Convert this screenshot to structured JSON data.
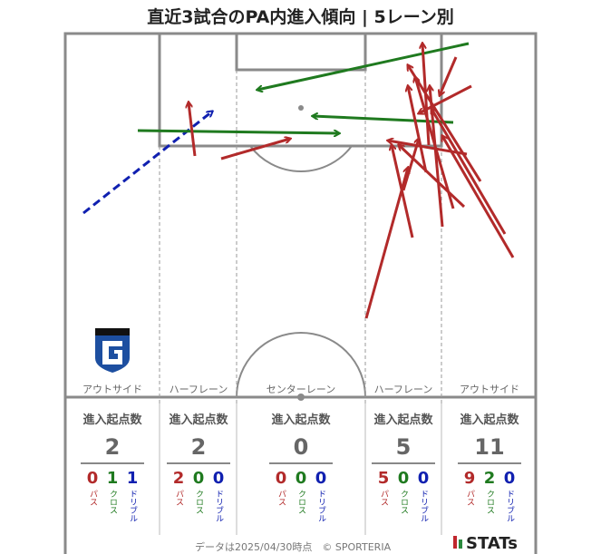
{
  "title": "直近3試合のPA内進入傾向 | 5レーン別",
  "colors": {
    "pass": "#b22a2a",
    "cross": "#1f7a1f",
    "dribble": "#1020b0",
    "line": "#8a8a8a"
  },
  "lanes": [
    {
      "label": "アウトサイド",
      "stat_head": "進入起点数",
      "total": "2",
      "pass": "0",
      "cross": "1",
      "dribble": "1"
    },
    {
      "label": "ハーフレーン",
      "stat_head": "進入起点数",
      "total": "2",
      "pass": "2",
      "cross": "0",
      "dribble": "0"
    },
    {
      "label": "センターレーン",
      "stat_head": "進入起点数",
      "total": "0",
      "pass": "0",
      "cross": "0",
      "dribble": "0"
    },
    {
      "label": "ハーフレーン",
      "stat_head": "進入起点数",
      "total": "5",
      "pass": "5",
      "cross": "0",
      "dribble": "0"
    },
    {
      "label": "アウトサイド",
      "stat_head": "進入起点数",
      "total": "11",
      "pass": "9",
      "cross": "2",
      "dribble": "0"
    }
  ],
  "type_labels": {
    "pass": "パス",
    "cross": "クロス",
    "dribble": "ドリブル"
  },
  "footer": "データは2025/04/30時点　© SPORTERIA",
  "brand": "STATs",
  "crest_letter": "G"
}
